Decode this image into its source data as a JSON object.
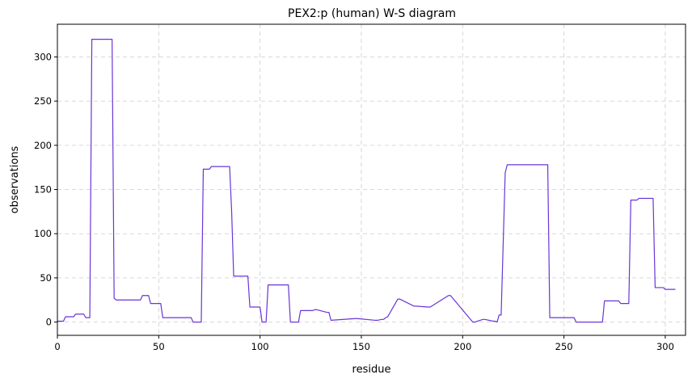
{
  "chart_data": {
    "type": "line",
    "title": "PEX2:p (human) W-S diagram",
    "xlabel": "residue",
    "ylabel": "observations",
    "xlim": [
      0,
      310
    ],
    "ylim": [
      -15,
      337
    ],
    "xticks": [
      0,
      50,
      100,
      150,
      200,
      250,
      300
    ],
    "yticks": [
      0,
      50,
      100,
      150,
      200,
      250,
      300
    ],
    "grid": true,
    "grid_style": "dashed",
    "line_color": "#6a35d6",
    "series": [
      {
        "x": [
          0,
          3,
          4,
          8,
          9,
          13,
          14,
          16,
          17,
          18,
          27,
          28,
          29,
          41,
          42,
          45,
          46,
          51,
          52,
          66,
          67,
          71,
          72,
          75,
          76,
          85,
          86,
          87,
          94,
          95,
          100,
          101,
          103,
          104,
          114,
          115,
          119,
          120,
          126,
          127,
          128,
          133,
          134,
          135,
          147,
          148,
          157,
          158,
          160,
          161,
          162,
          163,
          168,
          169,
          176,
          177,
          183,
          184,
          193,
          194,
          205,
          206,
          210,
          211,
          215,
          216,
          217,
          218,
          219,
          221,
          222,
          242,
          243,
          255,
          256,
          269,
          270,
          277,
          278,
          282,
          283,
          286,
          287,
          294,
          295,
          299,
          300,
          305
        ],
        "y": [
          1,
          1,
          6,
          6,
          9,
          9,
          5,
          5,
          320,
          320,
          320,
          27,
          25,
          25,
          30,
          30,
          21,
          21,
          5,
          5,
          0,
          0,
          173,
          173,
          176,
          176,
          125,
          52,
          52,
          17,
          17,
          0,
          0,
          42,
          42,
          0,
          0,
          13,
          13,
          14,
          14,
          11,
          11,
          2,
          4,
          4,
          2,
          2,
          3,
          3,
          5,
          6,
          26,
          26,
          18,
          18,
          17,
          17,
          30,
          30,
          0,
          0,
          3,
          3,
          1,
          1,
          0,
          8,
          8,
          169,
          178,
          178,
          5,
          5,
          0,
          0,
          24,
          24,
          21,
          21,
          138,
          138,
          140,
          140,
          39,
          39,
          37,
          37
        ]
      }
    ]
  }
}
